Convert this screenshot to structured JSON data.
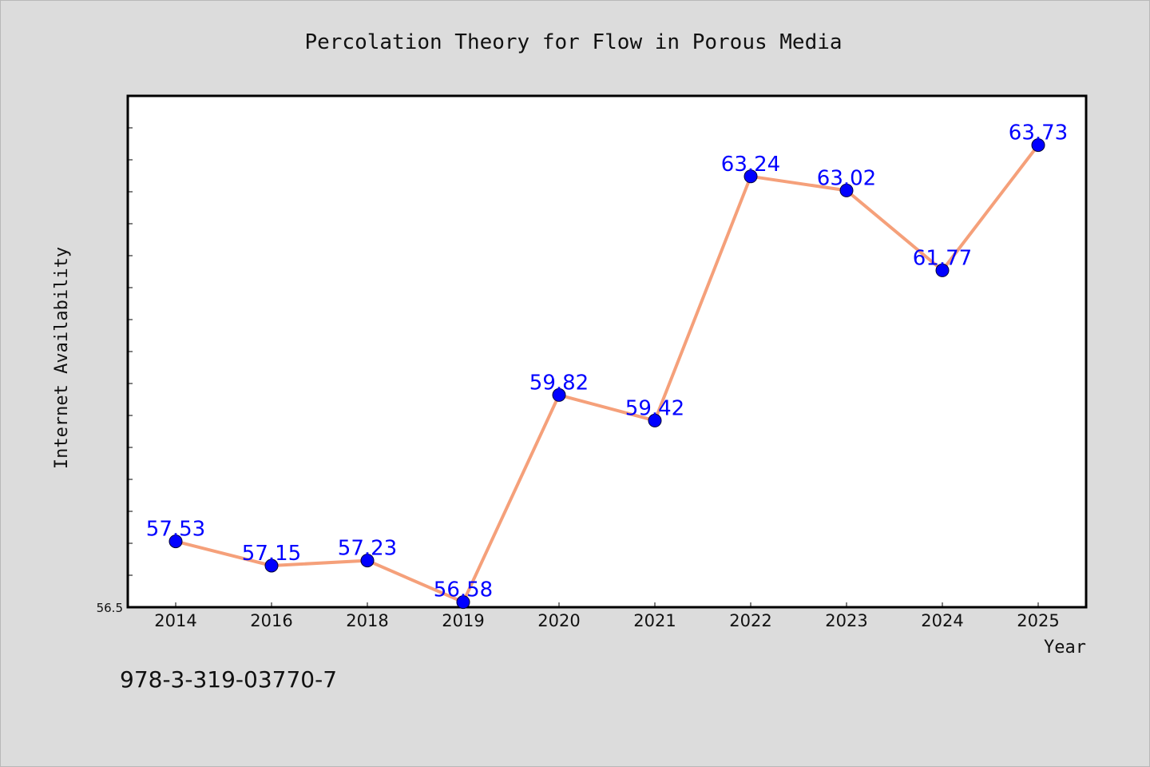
{
  "chart_data": {
    "type": "line",
    "title": "Percolation Theory for Flow in Porous Media",
    "xlabel": "Year",
    "ylabel": "Internet Availability",
    "categories": [
      "2014",
      "2016",
      "2018",
      "2019",
      "2020",
      "2021",
      "2022",
      "2023",
      "2024",
      "2025"
    ],
    "series": [
      {
        "values": [
          57.53,
          57.15,
          57.23,
          56.58,
          59.82,
          59.42,
          63.24,
          63.02,
          61.77,
          63.73
        ],
        "line_color": "#f5a07a",
        "marker_color": "#0000ff"
      }
    ],
    "data_labels": [
      "57.53",
      "57.15",
      "57.23",
      "56.58",
      "59.82",
      "59.42",
      "63.24",
      "63.02",
      "61.77",
      "63.73"
    ],
    "ylim": [
      56.5,
      64.5
    ],
    "y_tick_labels": [
      "56.5"
    ],
    "grid": false,
    "legend": "none",
    "label_color": "#0000ff",
    "background": "#dcdcdc",
    "plot_background": "#ffffff"
  },
  "footer": {
    "code": "978-3-319-03770-7"
  }
}
